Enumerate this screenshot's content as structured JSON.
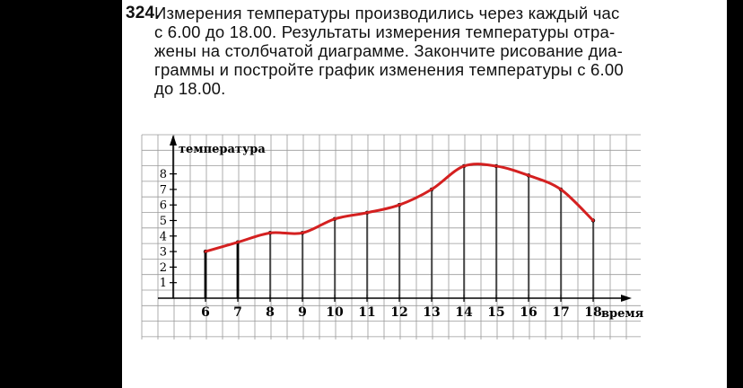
{
  "problem": {
    "number": "324.",
    "lines": [
      "Измерения температуры производились через каждый час",
      "с 6.00 до 18.00. Результаты измерения температуры отра-",
      "жены на столбчатой диаграмме. Закончите рисование диа-",
      "граммы и постройте график изменения температуры с 6.00",
      "до 18.00."
    ]
  },
  "chart_data": {
    "type": "line",
    "xlabel": "время",
    "ylabel": "температура",
    "x": [
      6,
      7,
      8,
      9,
      10,
      11,
      12,
      13,
      14,
      15,
      16,
      17,
      18
    ],
    "x_tick_labels": [
      "6",
      "7",
      "8",
      "9",
      "10",
      "11",
      "12",
      "13",
      "14",
      "15",
      "16",
      "17",
      "18"
    ],
    "y_tick_labels": [
      "1",
      "2",
      "3",
      "4",
      "5",
      "6",
      "7",
      "8"
    ],
    "series": [
      {
        "values": [
          3,
          3.6,
          4.2,
          4.2,
          5.1,
          5.5,
          6,
          7,
          8.5,
          8.5,
          7.9,
          7,
          5
        ]
      }
    ],
    "xlim": [
      5,
      19
    ],
    "ylim": [
      0,
      9
    ],
    "grid": true,
    "bars_as_vertical_lines": true,
    "line_color": "#d42020",
    "bar_color": "#000000"
  }
}
